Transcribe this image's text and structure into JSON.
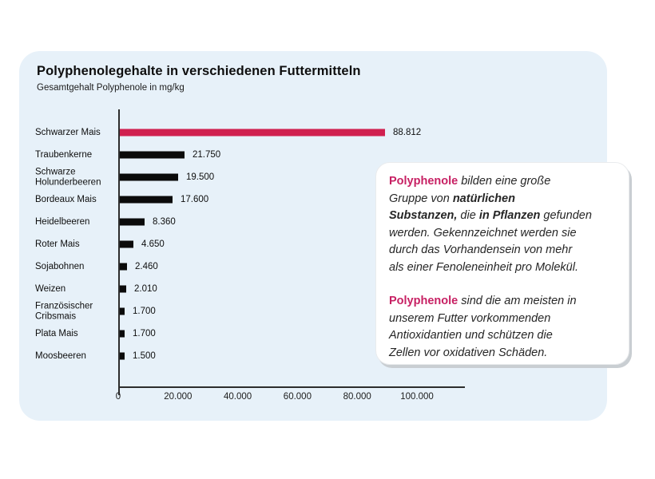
{
  "chart_data": {
    "type": "bar",
    "orientation": "horizontal",
    "title": "Polyphenolegehalte in verschiedenen Futtermitteln",
    "subtitle": "Gesamtgehalt Polyphenole in mg/kg",
    "categories": [
      "Schwarzer Mais",
      "Traubenkerne",
      "Schwarze Holunderbeeren",
      "Bordeaux Mais",
      "Heidelbeeren",
      "Roter Mais",
      "Sojabohnen",
      "Weizen",
      "Französischer Cribsmais",
      "Plata Mais",
      "Moosbeeren"
    ],
    "values": [
      88812,
      21750,
      19500,
      17600,
      8360,
      4650,
      2460,
      2010,
      1700,
      1700,
      1500
    ],
    "value_labels": [
      "88.812",
      "21.750",
      "19.500",
      "17.600",
      "8.360",
      "4.650",
      "2.460",
      "2.010",
      "1.700",
      "1.700",
      "1.500"
    ],
    "xlim": [
      0,
      100000
    ],
    "x_ticks": [
      "0",
      "20.000",
      "40.000",
      "60.000",
      "80.000",
      "100.000"
    ],
    "x_tick_values": [
      0,
      20000,
      40000,
      60000,
      80000,
      100000
    ],
    "grid": false,
    "legend": false,
    "highlight_index": 0
  },
  "colors": {
    "card_background": "#e7f1f9",
    "page_background": "#ffffff",
    "bar_highlight": "#d0204f",
    "bar_default": "#0b0b0b",
    "accent_text_pink": "#c72063",
    "axis": "#2d2d2d",
    "infobox_shadow": "#c9ced2"
  },
  "infobox": {
    "paragraphs": [
      {
        "lines": [
          [
            {
              "t": "Polyphenole",
              "b": 1,
              "p": 1
            },
            {
              "t": " bilden eine große"
            }
          ],
          [
            {
              "t": "Gruppe von "
            },
            {
              "t": "natürlichen",
              "b": 1
            }
          ],
          [
            {
              "t": "Substanzen,",
              "b": 1
            },
            {
              "t": " die "
            },
            {
              "t": "in Pflanzen",
              "b": 1
            },
            {
              "t": " gefunden"
            }
          ],
          [
            {
              "t": "werden. Gekennzeichnet werden sie"
            }
          ],
          [
            {
              "t": "durch das Vorhandensein von mehr"
            }
          ],
          [
            {
              "t": "als einer Fenoleneinheit pro Molekül."
            }
          ]
        ]
      },
      {
        "lines": [
          [
            {
              "t": "Polyphenole",
              "b": 1,
              "p": 1
            },
            {
              "t": " sind die am meisten in"
            }
          ],
          [
            {
              "t": "unserem Futter vorkommenden"
            }
          ],
          [
            {
              "t": "Antioxidantien und schützen die"
            }
          ],
          [
            {
              "t": "Zellen vor oxidativen Schäden."
            }
          ]
        ]
      }
    ]
  }
}
